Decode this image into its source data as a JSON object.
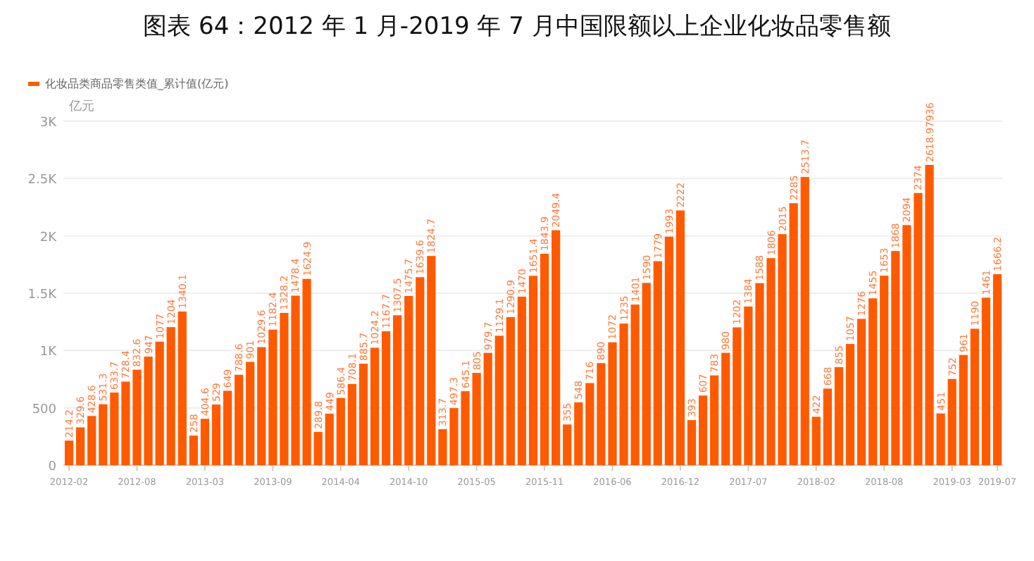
{
  "chart_data": {
    "type": "bar",
    "title": "图表 64：2012 年 1 月-2019 年 7 月中国限额以上企业化妆品零售额",
    "ylabel": "亿元",
    "categories": [
      "2012-02",
      null,
      null,
      null,
      null,
      null,
      "2012-08",
      null,
      null,
      null,
      null,
      null,
      "2013-03",
      null,
      null,
      null,
      null,
      null,
      "2013-09",
      null,
      null,
      null,
      null,
      null,
      "2014-04",
      null,
      null,
      null,
      null,
      null,
      "2014-10",
      null,
      null,
      null,
      null,
      null,
      "2015-05",
      null,
      null,
      null,
      null,
      null,
      "2015-11",
      null,
      null,
      null,
      null,
      null,
      "2016-06",
      null,
      null,
      null,
      null,
      null,
      "2016-12",
      null,
      null,
      null,
      null,
      null,
      "2017-07",
      null,
      null,
      null,
      null,
      null,
      "2018-02",
      null,
      null,
      null,
      null,
      null,
      "2018-08",
      null,
      null,
      null,
      null,
      null,
      "2019-03",
      null,
      null,
      null,
      "2019-07"
    ],
    "series": [
      {
        "name": "化妆品类商品零售类值_累计值(亿元)",
        "color": "#ff5a00",
        "values": [
          214.2,
          329.6,
          428.6,
          531.3,
          633.7,
          728.4,
          832.6,
          947,
          1077,
          1204,
          1340.1,
          258,
          404.6,
          529,
          649,
          788.6,
          901,
          1029.6,
          1182.4,
          1328.2,
          1478.4,
          1624.9,
          289.8,
          449,
          586.4,
          708.1,
          885.7,
          1024.2,
          1167.7,
          1307.5,
          1475.7,
          1639.6,
          1824.7,
          313.7,
          497.3,
          645.1,
          805,
          979.7,
          1129.1,
          1290.9,
          1470,
          1651.4,
          1843.9,
          2049.4,
          355,
          548,
          716,
          890,
          1072,
          1235,
          1401,
          1590,
          1779,
          1993,
          2222,
          393,
          607,
          783,
          980,
          1202,
          1384,
          1588,
          1806,
          2015,
          2285,
          2513.7,
          422,
          668,
          855,
          1057,
          1276,
          1455,
          1653,
          1868,
          2094,
          2374,
          2618.97936,
          451,
          752,
          961,
          1190,
          1461,
          1666.2
        ]
      }
    ],
    "ylim": [
      0,
      3000
    ],
    "yticks": [
      0,
      500,
      {
        "value": 1000,
        "label": "1K"
      },
      {
        "value": 1500,
        "label": "1.5K"
      },
      {
        "value": 2000,
        "label": "2K"
      },
      {
        "value": 2500,
        "label": "2.5K"
      },
      {
        "value": 3000,
        "label": "3K"
      }
    ],
    "grid": "y",
    "legend": "top left",
    "data_labels": true
  }
}
